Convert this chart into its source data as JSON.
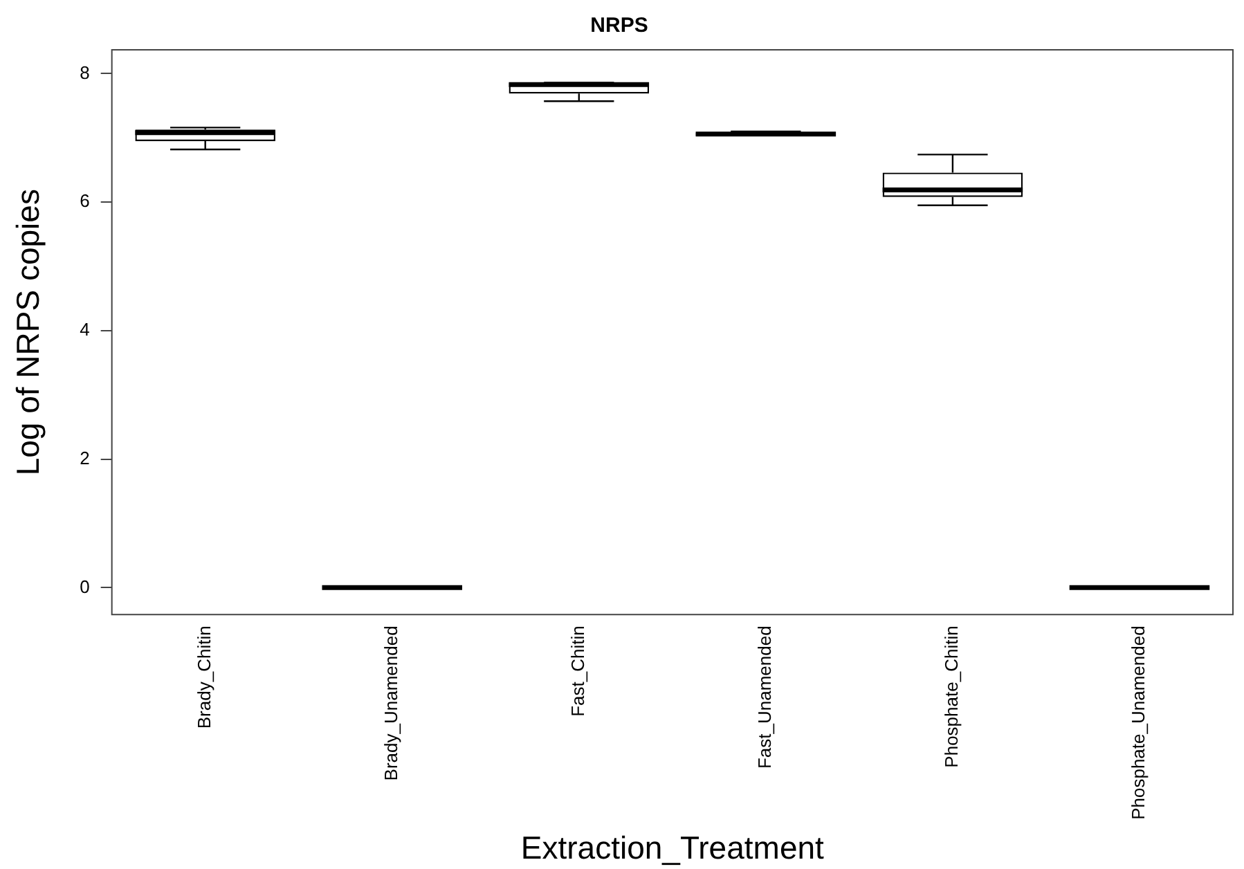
{
  "chart_data": {
    "type": "box",
    "title": "NRPS",
    "xlabel": "Extraction_Treatment",
    "ylabel": "Log of NRPS copies",
    "categories": [
      "Brady_Chitin",
      "Brady_Unamended",
      "Fast_Chitin",
      "Fast_Unamended",
      "Phosphate_Chitin",
      "Phosphate_Unamended"
    ],
    "boxes": [
      {
        "low": 6.82,
        "q1": 6.95,
        "median": 7.08,
        "q3": 7.13,
        "high": 7.16
      },
      {
        "low": 0,
        "q1": 0,
        "median": 0,
        "q3": 0,
        "high": 0
      },
      {
        "low": 7.57,
        "q1": 7.69,
        "median": 7.83,
        "q3": 7.86,
        "high": 7.86
      },
      {
        "low": 7.03,
        "q1": 7.03,
        "median": 7.06,
        "q3": 7.08,
        "high": 7.1
      },
      {
        "low": 5.95,
        "q1": 6.08,
        "median": 6.19,
        "q3": 6.46,
        "high": 6.74
      },
      {
        "low": 0,
        "q1": 0,
        "median": 0,
        "q3": 0,
        "high": 0
      }
    ],
    "ylim": [
      -0.42,
      8.37
    ],
    "yticks": [
      0,
      2,
      4,
      6,
      8
    ],
    "grid": false,
    "legend": false
  }
}
